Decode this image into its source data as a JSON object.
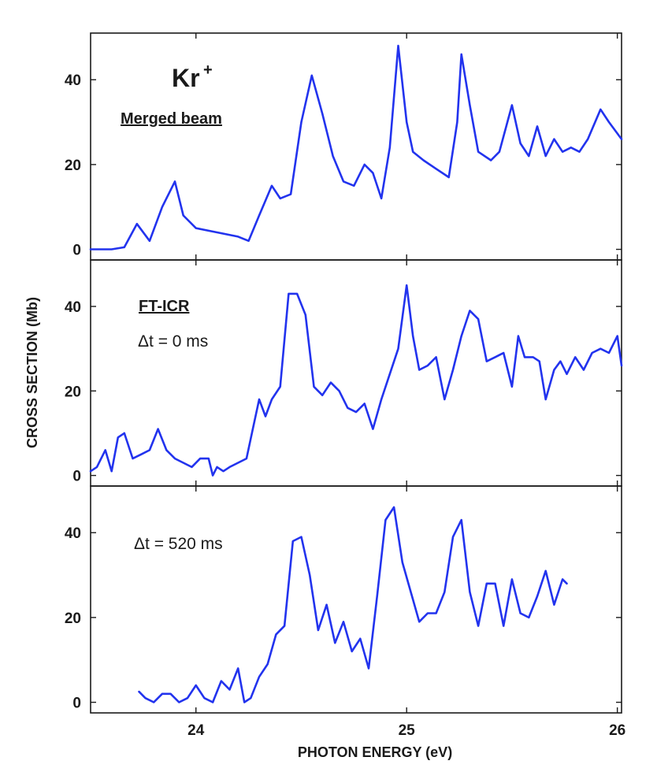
{
  "chart_data": {
    "type": "line",
    "xlabel": "PHOTON ENERGY (eV)",
    "ylabel": "CROSS SECTION (Mb)",
    "xlim": [
      23.5,
      26.02
    ],
    "x_ticks": [
      24,
      25,
      26
    ],
    "line_color": "#2233ee",
    "panels": [
      {
        "ylim": [
          -2.5,
          51
        ],
        "y_ticks": [
          0,
          20,
          40
        ],
        "annotations": [
          "Kr",
          "+",
          "Merged beam"
        ],
        "series": [
          {
            "x": [
              23.5,
              23.6,
              23.66,
              23.72,
              23.78,
              23.84,
              23.9,
              23.94,
              24.0,
              24.1,
              24.2,
              24.25,
              24.3,
              24.36,
              24.4,
              24.45,
              24.5,
              24.55,
              24.6,
              24.65,
              24.7,
              24.75,
              24.8,
              24.84,
              24.88,
              24.92,
              24.96,
              25.0,
              25.03,
              25.08,
              25.14,
              25.2,
              25.24,
              25.26,
              25.3,
              25.34,
              25.4,
              25.44,
              25.5,
              25.54,
              25.58,
              25.62,
              25.66,
              25.7,
              25.74,
              25.78,
              25.82,
              25.86,
              25.92,
              25.96,
              26.02
            ],
            "y": [
              0,
              0,
              0.5,
              6,
              2,
              10,
              16,
              8,
              5,
              4,
              3,
              2,
              8,
              15,
              12,
              13,
              30,
              41,
              32,
              22,
              16,
              15,
              20,
              18,
              12,
              24,
              48,
              30,
              23,
              21,
              19,
              17,
              30,
              46,
              34,
              23,
              21,
              23,
              34,
              25,
              22,
              29,
              22,
              26,
              23,
              24,
              23,
              26,
              33,
              30,
              26
            ]
          }
        ]
      },
      {
        "ylim": [
          -2.5,
          51
        ],
        "y_ticks": [
          0,
          20,
          40
        ],
        "annotations": [
          "FT-ICR",
          "Δt = 0 ms"
        ],
        "series": [
          {
            "x": [
              23.5,
              23.53,
              23.57,
              23.6,
              23.63,
              23.66,
              23.7,
              23.74,
              23.78,
              23.82,
              23.86,
              23.9,
              23.94,
              23.98,
              24.02,
              24.06,
              24.08,
              24.1,
              24.13,
              24.16,
              24.2,
              24.24,
              24.27,
              24.3,
              24.33,
              24.36,
              24.4,
              24.44,
              24.48,
              24.52,
              24.56,
              24.6,
              24.64,
              24.68,
              24.72,
              24.76,
              24.8,
              24.84,
              24.88,
              24.92,
              24.96,
              25.0,
              25.03,
              25.06,
              25.1,
              25.14,
              25.18,
              25.22,
              25.26,
              25.3,
              25.34,
              25.38,
              25.42,
              25.46,
              25.5,
              25.53,
              25.56,
              25.6,
              25.63,
              25.66,
              25.7,
              25.73,
              25.76,
              25.8,
              25.84,
              25.88,
              25.92,
              25.96,
              26.0,
              26.02
            ],
            "y": [
              1,
              2,
              6,
              1,
              9,
              10,
              4,
              5,
              6,
              11,
              6,
              4,
              3,
              2,
              4,
              4,
              0,
              2,
              1,
              2,
              3,
              4,
              11,
              18,
              14,
              18,
              21,
              43,
              43,
              38,
              21,
              19,
              22,
              20,
              16,
              15,
              17,
              11,
              18,
              24,
              30,
              45,
              33,
              25,
              26,
              28,
              18,
              25,
              33,
              39,
              37,
              27,
              28,
              29,
              21,
              33,
              28,
              28,
              27,
              18,
              25,
              27,
              24,
              28,
              25,
              29,
              30,
              29,
              33,
              26
            ]
          }
        ]
      },
      {
        "ylim": [
          -2.5,
          51
        ],
        "y_ticks": [
          0,
          20,
          40
        ],
        "annotations": [
          "Δt = 520 ms"
        ],
        "series": [
          {
            "x": [
              23.73,
              23.76,
              23.8,
              23.84,
              23.88,
              23.92,
              23.96,
              24.0,
              24.04,
              24.08,
              24.12,
              24.16,
              24.2,
              24.23,
              24.26,
              24.3,
              24.34,
              24.38,
              24.42,
              24.46,
              24.5,
              24.54,
              24.58,
              24.62,
              24.66,
              24.7,
              24.74,
              24.78,
              24.82,
              24.86,
              24.9,
              24.94,
              24.98,
              25.02,
              25.06,
              25.1,
              25.14,
              25.18,
              25.22,
              25.26,
              25.3,
              25.34,
              25.38,
              25.42,
              25.46,
              25.5,
              25.54,
              25.58,
              25.62,
              25.66,
              25.7,
              25.74,
              25.76
            ],
            "y": [
              2.5,
              1,
              0,
              2,
              2,
              0,
              1,
              4,
              1,
              0,
              5,
              3,
              8,
              0,
              1,
              6,
              9,
              16,
              18,
              38,
              39,
              30,
              17,
              23,
              14,
              19,
              12,
              15,
              8,
              25,
              43,
              46,
              33,
              26,
              19,
              21,
              21,
              26,
              39,
              43,
              26,
              18,
              28,
              28,
              18,
              29,
              21,
              20,
              25,
              31,
              23,
              29,
              28
            ]
          }
        ]
      }
    ]
  }
}
